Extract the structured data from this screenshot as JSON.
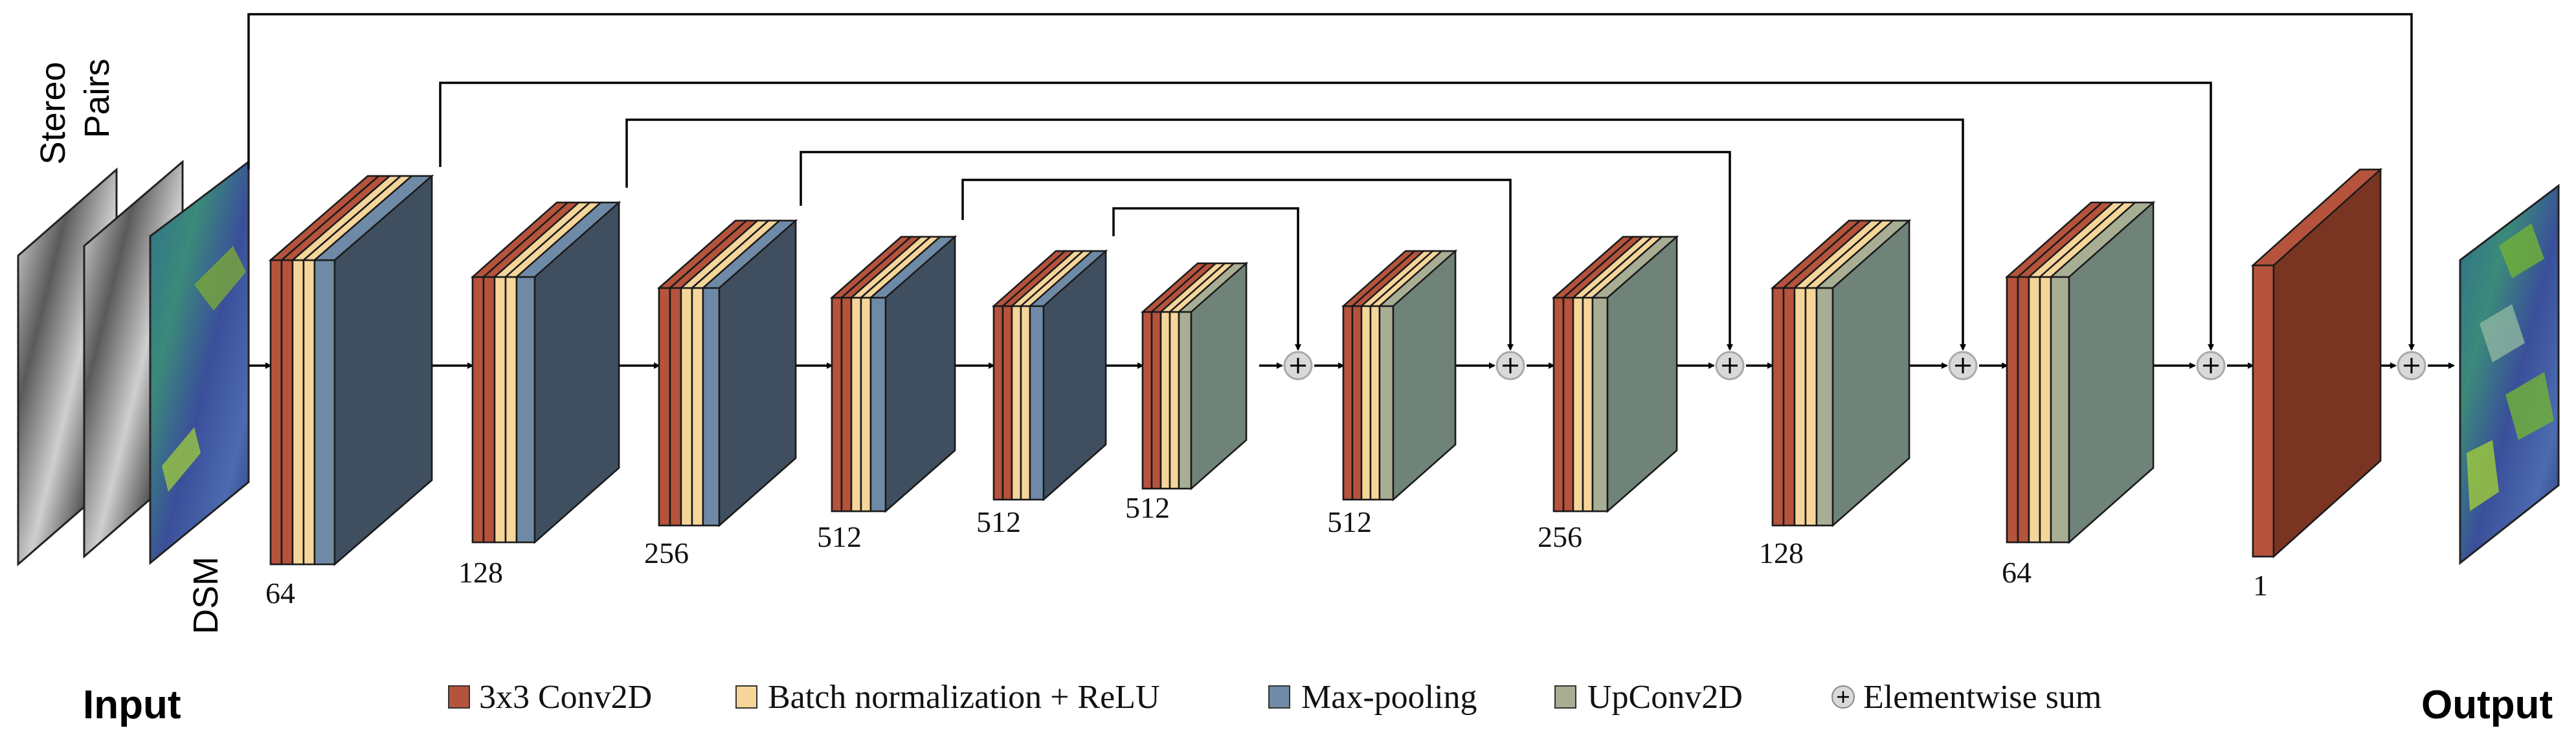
{
  "labels": {
    "stereo": "Stereo",
    "pairs": "Pairs",
    "dsm": "DSM",
    "input": "Input",
    "output": "Output"
  },
  "blocks": [
    {
      "channels": "64",
      "layers": [
        "conv",
        "conv",
        "bn",
        "bn",
        "main"
      ],
      "main": "pool"
    },
    {
      "channels": "128",
      "layers": [
        "conv",
        "conv",
        "bn",
        "bn",
        "main"
      ],
      "main": "pool"
    },
    {
      "channels": "256",
      "layers": [
        "conv",
        "conv",
        "bn",
        "bn",
        "main"
      ],
      "main": "pool"
    },
    {
      "channels": "512",
      "layers": [
        "conv",
        "conv",
        "bn",
        "bn",
        "main"
      ],
      "main": "pool"
    },
    {
      "channels": "512",
      "layers": [
        "conv",
        "conv",
        "bn",
        "bn",
        "main"
      ],
      "main": "pool"
    },
    {
      "channels": "512",
      "layers": [
        "conv",
        "conv",
        "bn",
        "bn",
        "main"
      ],
      "main": "up"
    },
    {
      "channels": "512",
      "layers": [
        "conv",
        "conv",
        "bn",
        "bn",
        "main"
      ],
      "main": "up"
    },
    {
      "channels": "256",
      "layers": [
        "conv",
        "conv",
        "bn",
        "bn",
        "main"
      ],
      "main": "up"
    },
    {
      "channels": "128",
      "layers": [
        "conv",
        "conv",
        "bn",
        "bn",
        "main"
      ],
      "main": "up"
    },
    {
      "channels": "64",
      "layers": [
        "conv",
        "conv",
        "bn",
        "bn",
        "main"
      ],
      "main": "up"
    },
    {
      "channels": "1",
      "layers": [
        "conv"
      ],
      "main": "conv"
    }
  ],
  "legend": [
    {
      "id": "conv",
      "label": "3x3 Conv2D",
      "color": "#b5533c"
    },
    {
      "id": "bn",
      "label": "Batch normalization + ReLU",
      "color": "#f5d59a"
    },
    {
      "id": "pool",
      "label": "Max-pooling",
      "color": "#6f8aa6"
    },
    {
      "id": "up",
      "label": "UpConv2D",
      "color": "#a8ae94"
    },
    {
      "id": "sum",
      "label": "Elementwise sum",
      "color": "#d9d9d9"
    }
  ],
  "colors": {
    "conv": "#b5533c",
    "conv_side": "#8f3a28",
    "bn": "#f5d59a",
    "bn_side": "#e8c07a",
    "pool": "#6f8aa6",
    "pool_side": "#3f4f60",
    "up": "#a8ae94",
    "up_side": "#6f8378",
    "final": "#7a3522"
  }
}
